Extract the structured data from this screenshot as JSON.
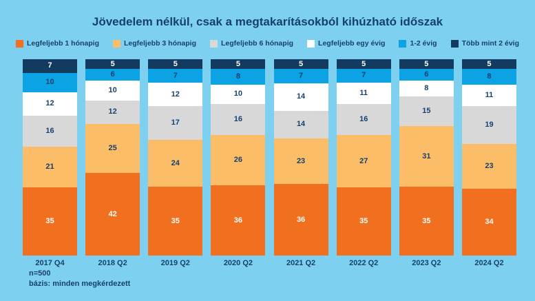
{
  "title": "Jövedelem nélkül, csak a megtakarításokból kihúzható időszak",
  "footer": {
    "sample_size": "n=500",
    "basis": "bázis: minden megkérdezett"
  },
  "colors": {
    "background": "#7ed0f1",
    "text_dark": "#15406d",
    "text_light": "#ffffff"
  },
  "chart_data": {
    "type": "bar",
    "stacked": true,
    "orientation": "vertical",
    "legend_position": "top",
    "value_labels": true,
    "grid": false,
    "categories": [
      "2017 Q4",
      "2018 Q2",
      "2019 Q2",
      "2020 Q2",
      "2021 Q2",
      "2022 Q2",
      "2023 Q2",
      "2024 Q2"
    ],
    "series": [
      {
        "name": "Legfeljebb 1 hónapig",
        "color": "#f1701f",
        "label_color": "#ffffff",
        "stack_order": 1,
        "values": [
          35,
          42,
          35,
          36,
          36,
          35,
          35,
          34
        ]
      },
      {
        "name": "Legfeljebb 3 hónapig",
        "color": "#fbbd67",
        "label_color": "#15406d",
        "stack_order": 2,
        "values": [
          21,
          25,
          24,
          26,
          23,
          27,
          31,
          23
        ]
      },
      {
        "name": "Legfeljebb 6 hónapig",
        "color": "#d8d8d8",
        "label_color": "#15406d",
        "stack_order": 3,
        "values": [
          16,
          12,
          17,
          16,
          14,
          16,
          15,
          19
        ]
      },
      {
        "name": "Legfeljebb egy évig",
        "color": "#ffffff",
        "label_color": "#15406d",
        "stack_order": 4,
        "values": [
          12,
          10,
          12,
          10,
          14,
          11,
          8,
          11
        ]
      },
      {
        "name": "1-2 évig",
        "color": "#0ba3e4",
        "label_color": "#15406d",
        "stack_order": 5,
        "values": [
          10,
          6,
          7,
          8,
          7,
          7,
          6,
          8
        ]
      },
      {
        "name": "Több mint 2 évig",
        "color": "#133a5f",
        "label_color": "#ffffff",
        "stack_order": 6,
        "values": [
          7,
          5,
          5,
          5,
          5,
          5,
          5,
          5
        ]
      }
    ]
  }
}
